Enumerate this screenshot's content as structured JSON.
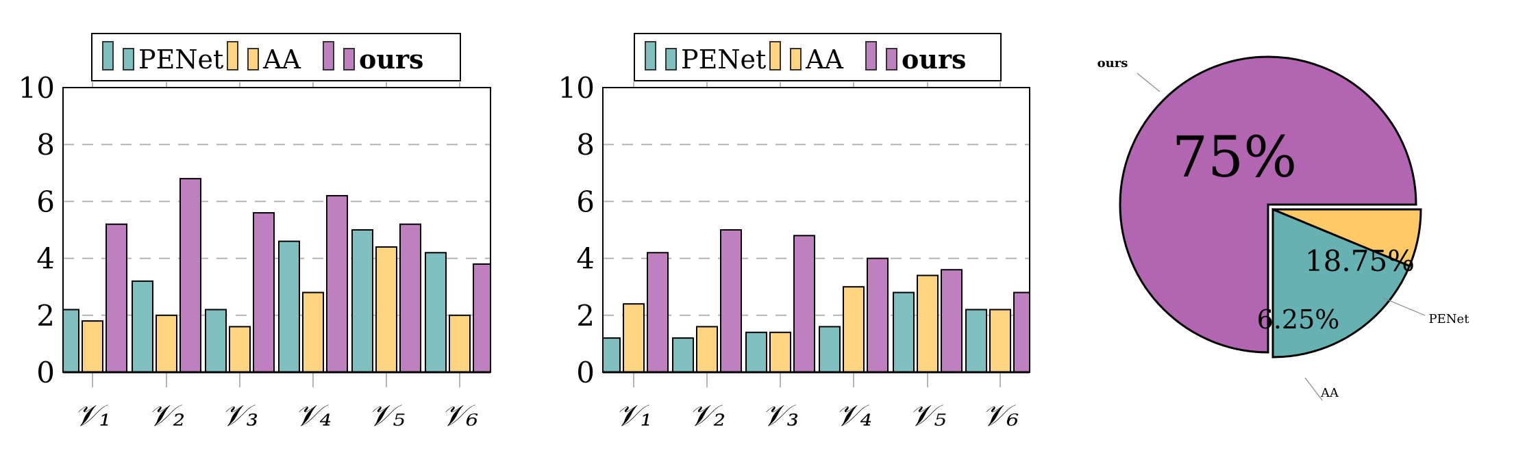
{
  "colors": {
    "PENet": "#80bfbf",
    "AA": "#ffd480",
    "ours": "#bf80bf",
    "pie_PENet": "#66b2b2",
    "pie_AA": "#ffc966",
    "pie_ours": "#b266b2",
    "grid": "#b3b3b3"
  },
  "chart_data": [
    {
      "type": "bar",
      "categories": [
        "𝒱₁",
        "𝒱₂",
        "𝒱₃",
        "𝒱₄",
        "𝒱₅",
        "𝒱₆"
      ],
      "ylim": [
        0,
        10
      ],
      "yticks": [
        "0",
        "2",
        "4",
        "6",
        "8",
        "10"
      ],
      "grid": "horizontal dashed",
      "legend": "top",
      "series": [
        {
          "name": "PENet",
          "values": [
            2.2,
            3.2,
            2.2,
            4.6,
            5.0,
            4.2
          ]
        },
        {
          "name": "AA",
          "values": [
            1.8,
            2.0,
            1.6,
            2.8,
            4.4,
            2.0
          ]
        },
        {
          "name": "ours",
          "values": [
            5.2,
            6.8,
            5.6,
            6.2,
            5.2,
            3.8
          ]
        }
      ]
    },
    {
      "type": "bar",
      "categories": [
        "𝒱₁",
        "𝒱₂",
        "𝒱₃",
        "𝒱₄",
        "𝒱₅",
        "𝒱₆"
      ],
      "ylim": [
        0,
        10
      ],
      "yticks": [
        "0",
        "2",
        "4",
        "6",
        "8",
        "10"
      ],
      "grid": "horizontal dashed",
      "legend": "top",
      "series": [
        {
          "name": "PENet",
          "values": [
            1.2,
            1.2,
            1.4,
            1.6,
            2.8,
            2.2
          ]
        },
        {
          "name": "AA",
          "values": [
            2.4,
            1.6,
            1.4,
            3.0,
            3.4,
            2.2
          ]
        },
        {
          "name": "ours",
          "values": [
            4.2,
            5.0,
            4.8,
            4.0,
            3.6,
            2.8
          ]
        }
      ]
    },
    {
      "type": "pie",
      "slices": [
        {
          "name": "ours",
          "value": 75,
          "label": "75%"
        },
        {
          "name": "PENet",
          "value": 18.75,
          "label": "18.75%"
        },
        {
          "name": "AA",
          "value": 6.25,
          "label": "6.25%"
        }
      ],
      "exploded": [
        "PENet",
        "AA"
      ]
    }
  ]
}
